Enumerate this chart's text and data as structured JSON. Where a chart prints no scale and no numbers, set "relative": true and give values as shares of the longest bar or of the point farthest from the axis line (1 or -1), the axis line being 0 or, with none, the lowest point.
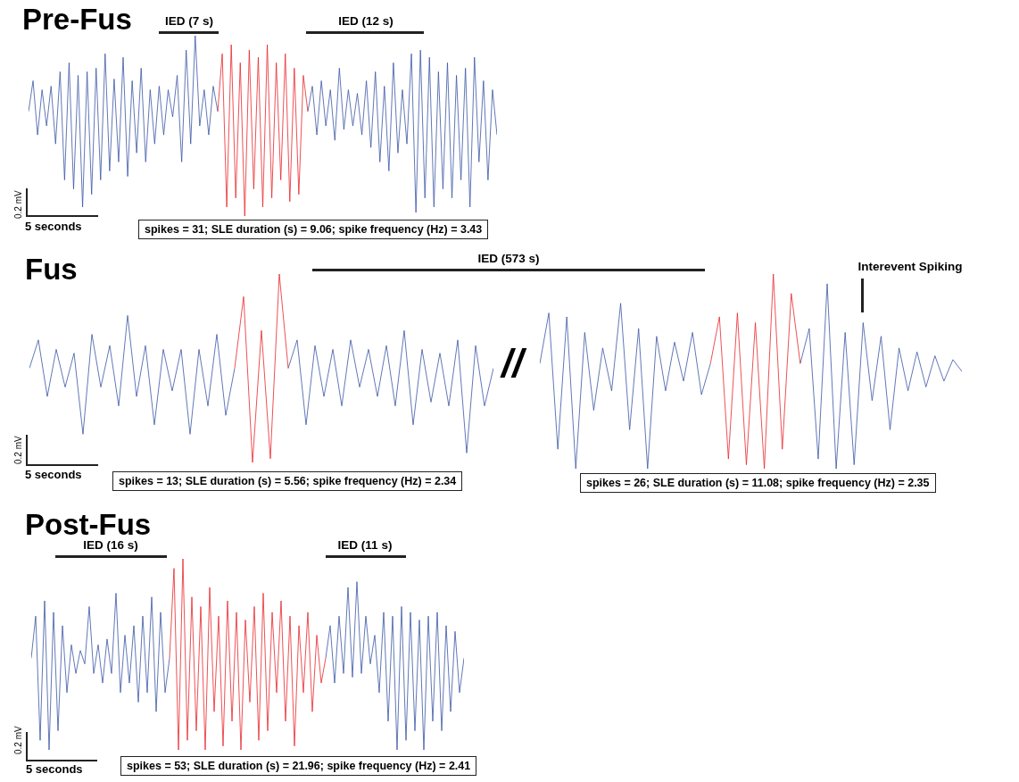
{
  "chart_data": [
    {
      "type": "line",
      "title": "Pre-Fus",
      "relative": true,
      "categories": [
        null,
        null,
        null,
        null,
        null,
        null,
        null,
        null,
        null,
        null,
        null,
        null,
        null,
        null,
        null,
        null,
        null,
        null,
        null,
        null,
        null,
        null,
        null,
        null,
        null,
        null,
        null,
        null,
        null,
        null,
        null,
        null,
        null,
        null,
        null,
        null,
        null,
        null,
        null,
        null,
        null,
        null,
        null,
        null,
        null,
        null,
        null,
        null,
        null,
        null,
        null,
        null,
        null,
        null,
        null,
        null,
        null,
        null,
        null,
        null,
        null,
        null,
        null,
        null,
        null,
        null,
        null,
        null,
        null,
        null,
        null,
        null,
        null,
        null,
        null,
        null,
        null,
        null,
        null,
        null,
        null,
        null,
        null,
        null,
        null,
        null,
        null,
        null,
        null,
        null,
        null,
        null,
        null,
        null,
        null,
        null,
        null,
        null,
        null,
        null,
        null,
        null,
        null,
        null,
        null
      ],
      "series": [
        {
          "color": "#3a55a5",
          "values": [
            0.58,
            0.75,
            0.45,
            0.7,
            0.5,
            0.72,
            0.4,
            0.8,
            0.2,
            0.85,
            0.15,
            0.78,
            0.05,
            0.8,
            0.12,
            0.82,
            0.2,
            0.9,
            0.25,
            0.76,
            0.3,
            0.88,
            0.22,
            0.75,
            0.35,
            0.82,
            0.3,
            0.7,
            0.4,
            0.72,
            0.45,
            0.7,
            0.55,
            0.78,
            0.3,
            0.92,
            0.4,
            1.0,
            0.5,
            0.7,
            0.45,
            0.72,
            0.58,
            null,
            null,
            null,
            null,
            null,
            null,
            null,
            null,
            null,
            null,
            null,
            null,
            null,
            null,
            null,
            null,
            null,
            null,
            null,
            0.58,
            0.72,
            0.45,
            0.75,
            0.5,
            0.7,
            0.42,
            0.82,
            0.48,
            0.7,
            0.5,
            0.68,
            0.45,
            0.75,
            0.38,
            0.8,
            0.3,
            0.72,
            0.25,
            0.85,
            0.35,
            0.7,
            0.4,
            0.9,
            0.02,
            0.92,
            0.1,
            0.88,
            0.05,
            0.8,
            0.15,
            0.85,
            0.1,
            0.78,
            0.2,
            0.82,
            0.05,
            0.88,
            0.3,
            0.75,
            0.2,
            0.7,
            0.45
          ]
        },
        {
          "color": "#e8252a",
          "values": [
            null,
            null,
            null,
            null,
            null,
            null,
            null,
            null,
            null,
            null,
            null,
            null,
            null,
            null,
            null,
            null,
            null,
            null,
            null,
            null,
            null,
            null,
            null,
            null,
            null,
            null,
            null,
            null,
            null,
            null,
            null,
            null,
            null,
            null,
            null,
            null,
            null,
            null,
            null,
            null,
            null,
            null,
            0.58,
            0.9,
            0.05,
            0.95,
            0.1,
            0.85,
            0.0,
            0.92,
            0.15,
            0.88,
            0.05,
            0.95,
            0.1,
            0.85,
            0.2,
            0.9,
            0.08,
            0.82,
            0.12,
            0.78,
            0.58,
            null,
            null,
            null,
            null,
            null,
            null,
            null,
            null,
            null,
            null,
            null,
            null,
            null,
            null,
            null,
            null,
            null,
            null,
            null,
            null,
            null,
            null,
            null,
            null,
            null,
            null,
            null,
            null,
            null,
            null,
            null,
            null,
            null,
            null,
            null,
            null,
            null,
            null,
            null,
            null,
            null,
            null
          ]
        }
      ],
      "annotations": [
        "IED (7 s)",
        "IED (12 s)",
        "0.2 mV",
        "5 seconds",
        "spikes = 31; SLE duration (s) = 9.06; spike frequency (Hz) = 3.43"
      ]
    },
    {
      "type": "line",
      "title": "Fus",
      "relative": true,
      "categories": [
        null,
        null,
        null,
        null,
        null,
        null,
        null,
        null,
        null,
        null,
        null,
        null,
        null,
        null,
        null,
        null,
        null,
        null,
        null,
        null,
        null,
        null,
        null,
        null,
        null,
        null,
        null,
        null,
        null,
        null,
        null,
        null,
        null,
        null,
        null,
        null,
        null,
        null,
        null,
        null,
        null,
        null,
        null,
        null,
        null,
        null,
        null,
        null,
        null,
        null,
        null,
        null,
        null
      ],
      "series": [
        {
          "color": "#3a55a5",
          "values": [
            0.5,
            0.65,
            0.35,
            0.6,
            0.4,
            0.58,
            0.15,
            0.68,
            0.4,
            0.62,
            0.3,
            0.78,
            0.35,
            0.62,
            0.2,
            0.6,
            0.38,
            0.6,
            0.15,
            0.6,
            0.3,
            0.68,
            0.25,
            0.5,
            null,
            null,
            null,
            null,
            null,
            0.5,
            0.65,
            0.2,
            0.62,
            0.35,
            0.6,
            0.3,
            0.65,
            0.4,
            0.6,
            0.35,
            0.62,
            0.3,
            0.7,
            0.2,
            0.6,
            0.32,
            0.58,
            0.3,
            0.65,
            0.05,
            0.62,
            0.3,
            0.5
          ]
        },
        {
          "color": "#e8252a",
          "values": [
            null,
            null,
            null,
            null,
            null,
            null,
            null,
            null,
            null,
            null,
            null,
            null,
            null,
            null,
            null,
            null,
            null,
            null,
            null,
            null,
            null,
            null,
            null,
            0.5,
            0.88,
            0.0,
            0.7,
            0.02,
            1.0,
            0.5,
            null,
            null,
            null,
            null,
            null,
            null,
            null,
            null,
            null,
            null,
            null,
            null,
            null,
            null,
            null,
            null,
            null,
            null,
            null,
            null,
            null,
            null,
            null
          ]
        }
      ],
      "annotations": [
        "IED (573 s)",
        "0.2 mV",
        "5 seconds",
        "spikes = 13; SLE duration (s) = 5.56; spike frequency (Hz) = 2.34"
      ]
    },
    {
      "type": "line",
      "relative": true,
      "categories": [
        null,
        null,
        null,
        null,
        null,
        null,
        null,
        null,
        null,
        null,
        null,
        null,
        null,
        null,
        null,
        null,
        null,
        null,
        null,
        null,
        null,
        null,
        null,
        null,
        null,
        null,
        null,
        null,
        null,
        null,
        null,
        null,
        null,
        null,
        null,
        null,
        null,
        null,
        null,
        null,
        null,
        null,
        null,
        null,
        null,
        null,
        null,
        null
      ],
      "series": [
        {
          "color": "#3a55a5",
          "values": [
            0.54,
            0.8,
            0.1,
            0.78,
            0.0,
            0.7,
            0.3,
            0.62,
            0.4,
            0.85,
            0.2,
            0.72,
            0.0,
            0.68,
            0.4,
            0.65,
            0.45,
            0.7,
            0.38,
            0.54,
            null,
            null,
            null,
            null,
            null,
            null,
            null,
            null,
            null,
            0.54,
            0.72,
            0.05,
            0.95,
            0.0,
            0.7,
            0.02,
            0.75,
            0.35,
            0.68,
            0.2,
            0.62,
            0.4,
            0.6,
            0.42,
            0.58,
            0.45,
            0.56,
            0.5
          ]
        },
        {
          "color": "#e8252a",
          "values": [
            null,
            null,
            null,
            null,
            null,
            null,
            null,
            null,
            null,
            null,
            null,
            null,
            null,
            null,
            null,
            null,
            null,
            null,
            null,
            0.54,
            0.78,
            0.05,
            0.8,
            0.02,
            0.75,
            0.0,
            1.0,
            0.1,
            0.9,
            0.54,
            null,
            null,
            null,
            null,
            null,
            null,
            null,
            null,
            null,
            null,
            null,
            null,
            null,
            null,
            null,
            null,
            null,
            null
          ]
        }
      ],
      "annotations": [
        "//",
        "Interevent Spiking",
        "spikes = 26; SLE duration (s) = 11.08; spike frequency (Hz) = 2.35"
      ]
    },
    {
      "type": "line",
      "title": "Post-Fus",
      "relative": true,
      "categories": [
        null,
        null,
        null,
        null,
        null,
        null,
        null,
        null,
        null,
        null,
        null,
        null,
        null,
        null,
        null,
        null,
        null,
        null,
        null,
        null,
        null,
        null,
        null,
        null,
        null,
        null,
        null,
        null,
        null,
        null,
        null,
        null,
        null,
        null,
        null,
        null,
        null,
        null,
        null,
        null,
        null,
        null,
        null,
        null,
        null,
        null,
        null,
        null,
        null,
        null,
        null,
        null,
        null,
        null,
        null,
        null,
        null,
        null,
        null,
        null,
        null,
        null,
        null,
        null,
        null,
        null,
        null,
        null,
        null,
        null,
        null,
        null,
        null,
        null,
        null,
        null,
        null,
        null,
        null,
        null,
        null,
        null,
        null,
        null,
        null,
        null,
        null,
        null,
        null,
        null,
        null,
        null,
        null,
        null,
        null,
        null,
        null,
        null
      ],
      "series": [
        {
          "color": "#3a55a5",
          "values": [
            0.48,
            0.7,
            0.05,
            0.78,
            0.0,
            0.72,
            0.1,
            0.65,
            0.3,
            0.55,
            0.4,
            0.52,
            0.45,
            0.75,
            0.4,
            0.55,
            0.35,
            0.58,
            0.4,
            0.82,
            0.3,
            0.6,
            0.35,
            0.65,
            0.25,
            0.7,
            0.3,
            0.8,
            0.2,
            0.72,
            0.3,
            0.48,
            null,
            null,
            null,
            null,
            null,
            null,
            null,
            null,
            null,
            null,
            null,
            null,
            null,
            null,
            null,
            null,
            null,
            null,
            null,
            null,
            null,
            null,
            null,
            null,
            null,
            null,
            null,
            null,
            null,
            null,
            null,
            null,
            null,
            null,
            0.48,
            0.65,
            0.35,
            0.7,
            0.4,
            0.85,
            0.38,
            0.88,
            0.4,
            0.7,
            0.45,
            0.6,
            0.3,
            0.72,
            0.15,
            0.7,
            0.0,
            0.75,
            0.05,
            0.72,
            0.1,
            0.68,
            0.0,
            0.7,
            0.15,
            0.72,
            0.1,
            0.65,
            0.2,
            0.62,
            0.3,
            0.48
          ]
        },
        {
          "color": "#e8252a",
          "values": [
            null,
            null,
            null,
            null,
            null,
            null,
            null,
            null,
            null,
            null,
            null,
            null,
            null,
            null,
            null,
            null,
            null,
            null,
            null,
            null,
            null,
            null,
            null,
            null,
            null,
            null,
            null,
            null,
            null,
            null,
            null,
            0.48,
            0.95,
            0.0,
            1.0,
            0.05,
            0.8,
            0.1,
            0.75,
            0.0,
            0.85,
            0.2,
            0.7,
            0.02,
            0.78,
            0.15,
            0.72,
            0.0,
            0.68,
            0.25,
            0.75,
            0.05,
            0.82,
            0.1,
            0.72,
            0.3,
            0.78,
            0.15,
            0.7,
            0.02,
            0.65,
            0.3,
            0.72,
            0.2,
            0.6,
            0.35,
            0.48,
            null,
            null,
            null,
            null,
            null,
            null,
            null,
            null,
            null,
            null,
            null,
            null,
            null,
            null,
            null,
            null,
            null,
            null,
            null,
            null,
            null,
            null,
            null,
            null,
            null,
            null,
            null,
            null,
            null,
            null,
            null
          ]
        }
      ],
      "annotations": [
        "IED (16 s)",
        "IED (11 s)",
        "0.2 mV",
        "5 seconds",
        "spikes = 53; SLE duration (s) = 21.96; spike frequency (Hz) = 2.41"
      ]
    }
  ]
}
